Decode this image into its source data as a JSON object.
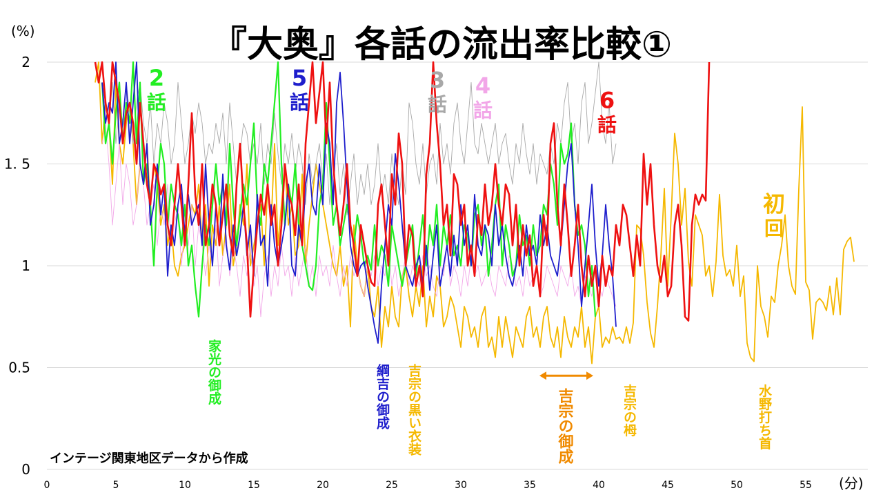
{
  "chart_data": {
    "type": "line",
    "title": "『大奥』各話の流出率比較①",
    "y_unit_label": "(%)",
    "x_unit_label": "(分)",
    "source_note": "インテージ関東地区データから作成",
    "xlim": [
      0,
      59.5
    ],
    "ylim": [
      0,
      2
    ],
    "grid": true,
    "y_ticks": [
      {
        "value": 0,
        "label": "0"
      },
      {
        "value": 0.5,
        "label": "0.5"
      },
      {
        "value": 1,
        "label": "1"
      },
      {
        "value": 1.5,
        "label": "1. 5"
      },
      {
        "value": 2,
        "label": "2"
      }
    ],
    "x_ticks": [
      {
        "value": 0,
        "label": "0"
      },
      {
        "value": 5,
        "label": "5"
      },
      {
        "value": 10,
        "label": "10"
      },
      {
        "value": 15,
        "label": "15"
      },
      {
        "value": 20,
        "label": "20"
      },
      {
        "value": 25,
        "label": "25"
      },
      {
        "value": 30,
        "label": "30"
      },
      {
        "value": 35,
        "label": "35"
      },
      {
        "value": 40,
        "label": "40"
      },
      {
        "value": 45,
        "label": "45"
      },
      {
        "value": 50,
        "label": "50"
      },
      {
        "value": 55,
        "label": "55"
      }
    ],
    "series": [
      {
        "name": "初回",
        "color": "#F5B800",
        "width": 1.8,
        "x_start": 3.5,
        "x_step": 0.25,
        "values": [
          1.9,
          2.0,
          1.6,
          1.8,
          1.7,
          1.4,
          1.9,
          1.6,
          1.5,
          1.7,
          1.8,
          1.6,
          1.3,
          1.5,
          1.4,
          1.6,
          1.3,
          1.5,
          1.4,
          1.2,
          1.3,
          1.1,
          1.2,
          1.0,
          0.95,
          1.05,
          1.1,
          1.2,
          1.3,
          1.25,
          1.4,
          1.1,
          1.3,
          0.9,
          1.2,
          1.1,
          1.3,
          1.05,
          1.2,
          1.4,
          1.0,
          1.1,
          1.3,
          1.2,
          1.5,
          1.0,
          1.1,
          1.2,
          1.3,
          1.0,
          1.4,
          1.2,
          1.6,
          1.1,
          1.3,
          1.5,
          1.2,
          1.3,
          1.05,
          1.1,
          1.45,
          1.0,
          1.2,
          1.35,
          1.5,
          1.4,
          1.3,
          1.2,
          1.1,
          1.0,
          0.95,
          1.1,
          0.9,
          1.0,
          0.7,
          1.2,
          1.0,
          0.9,
          0.85,
          1.0,
          0.8,
          0.75,
          0.9,
          0.6,
          0.8,
          0.7,
          0.9,
          0.75,
          0.7,
          0.95,
          1.0,
          0.85,
          0.75,
          0.9,
          0.8,
          1.0,
          0.7,
          0.85,
          0.75,
          0.95,
          0.9,
          0.7,
          0.75,
          0.85,
          0.8,
          0.7,
          0.6,
          0.8,
          0.75,
          0.65,
          0.7,
          0.6,
          0.75,
          0.8,
          0.6,
          0.65,
          0.55,
          0.75,
          0.6,
          0.75,
          0.65,
          0.55,
          0.7,
          0.65,
          0.6,
          0.75,
          0.8,
          0.65,
          0.7,
          0.6,
          0.75,
          0.8,
          0.65,
          0.6,
          0.7,
          0.55,
          0.75,
          0.65,
          0.6,
          0.7,
          0.65,
          0.8,
          0.6,
          0.7,
          0.52,
          0.75,
          0.8,
          0.6,
          0.65,
          0.62,
          0.7,
          0.64,
          0.65,
          0.62,
          0.7,
          0.62,
          0.72,
          1.2,
          1.18,
          1.05,
          0.82,
          0.67,
          0.6,
          0.8,
          1.05,
          1.38,
          0.9,
          1.25,
          1.65,
          1.5,
          1.2,
          1.38,
          1.02,
          0.9,
          1.25,
          1.2,
          1.15,
          0.95,
          1.0,
          0.85,
          1.02,
          1.35,
          1.05,
          0.95,
          0.98,
          0.9,
          1.1,
          0.85,
          0.95,
          0.62,
          0.55,
          0.53,
          1.0,
          0.8,
          0.75,
          0.65,
          0.85,
          0.82,
          1.0,
          1.1,
          1.25,
          1.0,
          0.9,
          0.86,
          1.38,
          1.78,
          0.92,
          0.88,
          0.64,
          0.82,
          0.84,
          0.82,
          0.78,
          0.9,
          0.76,
          0.94,
          0.76,
          1.08,
          1.12,
          1.14,
          1.02
        ]
      },
      {
        "name": "3話",
        "color": "#A8A8A8",
        "width": 0.9,
        "x_start": 4.0,
        "x_step": 0.25,
        "values": [
          1.9,
          1.8,
          1.7,
          1.9,
          1.6,
          1.8,
          1.7,
          1.9,
          1.75,
          1.6,
          1.8,
          1.9,
          1.7,
          1.6,
          1.8,
          1.5,
          1.7,
          1.6,
          1.8,
          1.7,
          1.5,
          1.6,
          1.9,
          1.7,
          1.5,
          1.6,
          1.75,
          1.65,
          1.8,
          1.7,
          1.5,
          1.6,
          1.55,
          1.7,
          1.6,
          1.75,
          1.5,
          1.8,
          1.6,
          1.4,
          1.55,
          1.7,
          1.65,
          1.5,
          1.6,
          1.5,
          1.7,
          1.4,
          1.6,
          1.5,
          1.75,
          1.55,
          1.4,
          1.6,
          1.5,
          1.65,
          1.45,
          1.6,
          1.5,
          1.3,
          1.55,
          1.4,
          1.5,
          1.6,
          1.4,
          1.55,
          1.3,
          1.45,
          1.6,
          1.35,
          1.5,
          1.25,
          1.4,
          1.55,
          1.3,
          1.45,
          1.35,
          1.5,
          1.3,
          1.4,
          1.6,
          1.35,
          1.45,
          1.3,
          1.55,
          1.4,
          1.3,
          1.5,
          1.35,
          1.8,
          1.7,
          1.5,
          1.4,
          1.6,
          1.35,
          1.5,
          1.55,
          1.4,
          1.7,
          1.5,
          1.6,
          1.45,
          1.7,
          1.8,
          1.6,
          1.5,
          1.7,
          1.9,
          1.6,
          1.55,
          1.7,
          1.6,
          1.5,
          1.6,
          1.7,
          1.5,
          1.6,
          1.65,
          1.5,
          1.4,
          1.6,
          1.5,
          1.7,
          1.55,
          1.45,
          1.6,
          1.4,
          1.55,
          1.5,
          1.45,
          1.6,
          1.5,
          1.7,
          1.6,
          1.8,
          1.9,
          1.6,
          1.7,
          1.5,
          1.8,
          1.9,
          1.6,
          1.7,
          1.85,
          2.0,
          1.7,
          1.6,
          1.8,
          1.5,
          1.6
        ]
      },
      {
        "name": "4話",
        "color": "#F2A6E8",
        "width": 0.9,
        "x_start": 4.0,
        "x_step": 0.25,
        "values": [
          1.6,
          1.7,
          1.5,
          1.2,
          1.4,
          1.6,
          1.3,
          1.5,
          1.4,
          1.2,
          1.3,
          1.5,
          1.4,
          1.2,
          1.3,
          1.4,
          1.1,
          1.3,
          1.2,
          1.4,
          1.1,
          1.2,
          1.3,
          1.0,
          1.2,
          1.1,
          1.3,
          1.0,
          1.2,
          1.1,
          0.95,
          1.1,
          1.0,
          1.2,
          0.9,
          1.05,
          1.15,
          0.95,
          1.1,
          1.0,
          0.85,
          1.05,
          0.95,
          1.1,
          0.9,
          1.0,
          0.75,
          0.95,
          1.05,
          0.85,
          1.0,
          0.9,
          1.1,
          0.95,
          1.0,
          0.85,
          1.05,
          0.9,
          1.0,
          1.1,
          0.9,
          1.0,
          0.85,
          1.05,
          0.95,
          1.0,
          0.9,
          1.1,
          0.95,
          0.85,
          1.0,
          0.9,
          1.05,
          0.95,
          1.0,
          0.9,
          0.85,
          1.0,
          0.95,
          1.05,
          0.9,
          1.0,
          0.95,
          1.1,
          0.9,
          1.0,
          0.85,
          0.95,
          1.05,
          0.9,
          1.0,
          0.95,
          0.9,
          1.05,
          0.95,
          1.0,
          0.9,
          0.85,
          1.0,
          0.95,
          1.1,
          0.9,
          1.0,
          0.95,
          0.85,
          1.0,
          0.9,
          1.05,
          0.95,
          1.0,
          0.9,
          0.95,
          1.0,
          0.9,
          0.85,
          1.0,
          0.95,
          0.9,
          1.05,
          1.0,
          0.9,
          0.95,
          0.85,
          1.0,
          0.9,
          0.95,
          1.0,
          0.85,
          0.9,
          1.0,
          0.95,
          0.9,
          0.85,
          1.0,
          0.95,
          0.9,
          1.0,
          0.85,
          0.9,
          0.8,
          0.95,
          0.9,
          0.85,
          1.0,
          0.9,
          0.85,
          0.95,
          0.9,
          0.85,
          0.8
        ]
      },
      {
        "name": "2話",
        "color": "#22EE22",
        "width": 2.2,
        "x_start": 4.0,
        "x_step": 0.25,
        "values": [
          1.9,
          1.6,
          1.7,
          1.5,
          1.75,
          1.9,
          1.6,
          1.8,
          1.7,
          2.0,
          1.6,
          1.9,
          1.4,
          1.5,
          1.3,
          1.0,
          1.4,
          1.6,
          1.5,
          1.2,
          1.4,
          1.3,
          1.25,
          1.1,
          1.3,
          1.0,
          1.1,
          0.9,
          0.75,
          1.0,
          1.2,
          1.1,
          1.3,
          1.5,
          1.3,
          1.4,
          1.2,
          1.6,
          1.3,
          1.1,
          1.25,
          1.4,
          1.3,
          1.5,
          1.7,
          1.3,
          1.2,
          1.5,
          1.4,
          1.6,
          1.8,
          2.0,
          1.5,
          1.2,
          1.4,
          1.3,
          1.5,
          1.2,
          1.1,
          1.0,
          0.9,
          0.88,
          1.0,
          1.3,
          1.4,
          1.8,
          1.5,
          1.2,
          1.3,
          1.1,
          1.2,
          1.3,
          1.2,
          1.1,
          1.25,
          1.15,
          1.0,
          1.05,
          0.98,
          1.2,
          1.0,
          1.1,
          1.05,
          0.9,
          1.2,
          1.1,
          1.0,
          0.9,
          1.0,
          1.1,
          1.2,
          0.95,
          1.1,
          1.25,
          1.0,
          1.2,
          1.1,
          1.3,
          1.0,
          1.2,
          1.1,
          1.25,
          1.05,
          1.1,
          1.0,
          1.2,
          1.15,
          1.0,
          1.25,
          1.3,
          1.1,
          1.2,
          0.95,
          1.1,
          1.3,
          1.4,
          1.0,
          1.2,
          1.1,
          0.95,
          1.0,
          1.25,
          1.1,
          1.15,
          1.0,
          1.2,
          1.05,
          1.1,
          1.3,
          1.25,
          1.5,
          1.4,
          1.2,
          1.6,
          1.5,
          1.55,
          1.7,
          1.3,
          1.15,
          1.2,
          1.1,
          0.85,
          1.0,
          0.75
        ]
      },
      {
        "name": "5話",
        "color": "#1E1ECC",
        "width": 1.8,
        "x_start": 4.0,
        "x_step": 0.25,
        "values": [
          1.9,
          1.7,
          1.8,
          1.75,
          2.0,
          1.6,
          1.7,
          1.9,
          1.6,
          1.8,
          2.0,
          1.5,
          1.4,
          1.6,
          1.2,
          1.3,
          1.5,
          1.25,
          1.4,
          0.95,
          1.2,
          1.1,
          1.3,
          1.4,
          1.15,
          1.35,
          1.2,
          1.25,
          1.3,
          1.1,
          1.5,
          1.2,
          1.0,
          1.3,
          1.1,
          1.45,
          1.1,
          0.98,
          1.2,
          1.05,
          1.15,
          1.3,
          1.05,
          1.2,
          0.95,
          1.35,
          1.1,
          1.15,
          0.9,
          1.3,
          1.1,
          1.0,
          1.1,
          1.2,
          1.4,
          1.0,
          0.95,
          1.2,
          1.1,
          1.4,
          1.5,
          1.3,
          1.25,
          1.5,
          1.3,
          1.7,
          1.6,
          1.3,
          1.8,
          1.95,
          1.7,
          1.4,
          1.1,
          1.0,
          0.95,
          1.0,
          1.02,
          0.9,
          0.8,
          0.7,
          0.62,
          0.9,
          1.1,
          1.3,
          1.2,
          1.55,
          1.4,
          1.2,
          1.0,
          0.95,
          0.9,
          1.0,
          1.05,
          0.9,
          1.1,
          0.88,
          1.05,
          1.2,
          0.9,
          1.0,
          1.1,
          0.95,
          1.15,
          1.0,
          1.3,
          1.1,
          1.2,
          1.0,
          1.35,
          1.1,
          1.05,
          1.2,
          1.15,
          1.0,
          1.3,
          1.1,
          1.2,
          1.05,
          0.95,
          0.9,
          1.0,
          1.1,
          0.95,
          1.2,
          1.05,
          1.1,
          1.0,
          1.25,
          1.1,
          1.2,
          1.05,
          1.0,
          0.95,
          1.1,
          1.3,
          1.5,
          1.6,
          1.3,
          1.1,
          0.8,
          1.0,
          1.2,
          1.4,
          1.1,
          0.9,
          1.05,
          1.3,
          1.1,
          0.95,
          0.7
        ]
      },
      {
        "name": "6話",
        "color": "#EE1111",
        "width": 2.6,
        "x_start": 3.5,
        "x_step": 0.25,
        "values": [
          2.0,
          1.9,
          2.0,
          1.8,
          1.7,
          2.0,
          1.9,
          1.8,
          1.6,
          1.75,
          1.8,
          1.7,
          1.5,
          1.8,
          1.6,
          1.4,
          1.3,
          1.5,
          1.45,
          1.35,
          1.4,
          1.2,
          1.1,
          1.3,
          1.5,
          1.3,
          1.1,
          1.4,
          1.75,
          1.35,
          1.2,
          1.5,
          1.1,
          1.2,
          1.4,
          1.3,
          1.1,
          1.25,
          1.4,
          1.15,
          1.05,
          1.4,
          1.6,
          1.3,
          1.1,
          0.75,
          1.0,
          1.2,
          1.35,
          1.25,
          1.4,
          1.2,
          1.3,
          1.0,
          1.2,
          1.5,
          1.35,
          1.3,
          1.15,
          1.4,
          1.1,
          1.6,
          1.8,
          2.0,
          1.7,
          1.85,
          2.0,
          1.6,
          1.9,
          1.5,
          1.3,
          1.15,
          1.3,
          1.5,
          1.2,
          1.1,
          0.95,
          1.2,
          1.1,
          1.0,
          0.92,
          0.9,
          1.3,
          1.4,
          1.2,
          1.0,
          1.45,
          1.3,
          1.65,
          1.5,
          1.0,
          1.2,
          1.15,
          0.9,
          1.0,
          0.85,
          1.45,
          1.6,
          2.0,
          1.7,
          1.5,
          1.2,
          1.3,
          1.05,
          1.45,
          1.4,
          1.2,
          1.3,
          1.0,
          1.1,
          0.95,
          1.25,
          1.15,
          1.4,
          1.2,
          1.3,
          1.5,
          1.3,
          1.2,
          1.4,
          1.35,
          1.1,
          1.3,
          1.0,
          1.2,
          1.05,
          1.15,
          0.9,
          1.0,
          0.85,
          1.25,
          1.1,
          1.6,
          1.7,
          1.3,
          1.1,
          1.4,
          1.2,
          0.95,
          1.1,
          1.3,
          1.0,
          0.85,
          1.05,
          0.9,
          1.0,
          0.8,
          1.05,
          0.9,
          1.0,
          0.95,
          1.2,
          1.1,
          1.3,
          1.25,
          1.1,
          0.95,
          1.15,
          1.0,
          1.55,
          1.3,
          1.5,
          1.2,
          1.0,
          0.92,
          1.05,
          0.85,
          0.9,
          1.2,
          1.3,
          1.1,
          0.75,
          0.73,
          1.2,
          1.35,
          1.3,
          1.35,
          1.32,
          2.0
        ]
      }
    ],
    "series_labels": [
      {
        "text": "2",
        "text2": "話",
        "color": "#22EE22",
        "x": 7.95,
        "y": 1.96
      },
      {
        "text": "5",
        "text2": "話",
        "color": "#1E1ECC",
        "x": 18.3,
        "y": 1.96
      },
      {
        "text": "3",
        "text2": "話",
        "color": "#A8A8A8",
        "x": 28.3,
        "y": 1.95
      },
      {
        "text": "4",
        "text2": "話",
        "color": "#F2A6E8",
        "x": 31.6,
        "y": 1.92
      },
      {
        "text": "6",
        "text2": "話",
        "color": "#EE1111",
        "x": 40.6,
        "y": 1.85
      },
      {
        "text": "初",
        "text2": "回",
        "color": "#F5B800",
        "x": 52.7,
        "y": 1.34
      }
    ],
    "annotations": [
      {
        "text": "家光の御成",
        "color": "#22EE22",
        "x": 12.1,
        "y": 0.64
      },
      {
        "text": "綱吉の御成",
        "color": "#1E1ECC",
        "x": 24.3,
        "y": 0.52
      },
      {
        "text": "吉宗の黒い衣装",
        "color": "#F5B800",
        "x": 26.6,
        "y": 0.52
      },
      {
        "text": "吉宗の御成",
        "color": "#F08A00",
        "x": 37.5,
        "y": 0.4,
        "big": true,
        "arrow": [
          35.7,
          39.6,
          0.46
        ]
      },
      {
        "text": "吉宗の栂",
        "color": "#F5B800",
        "x": 42.2,
        "y": 0.42
      },
      {
        "text": "水野打ち首",
        "color": "#F5B800",
        "x": 52.0,
        "y": 0.42
      }
    ]
  }
}
